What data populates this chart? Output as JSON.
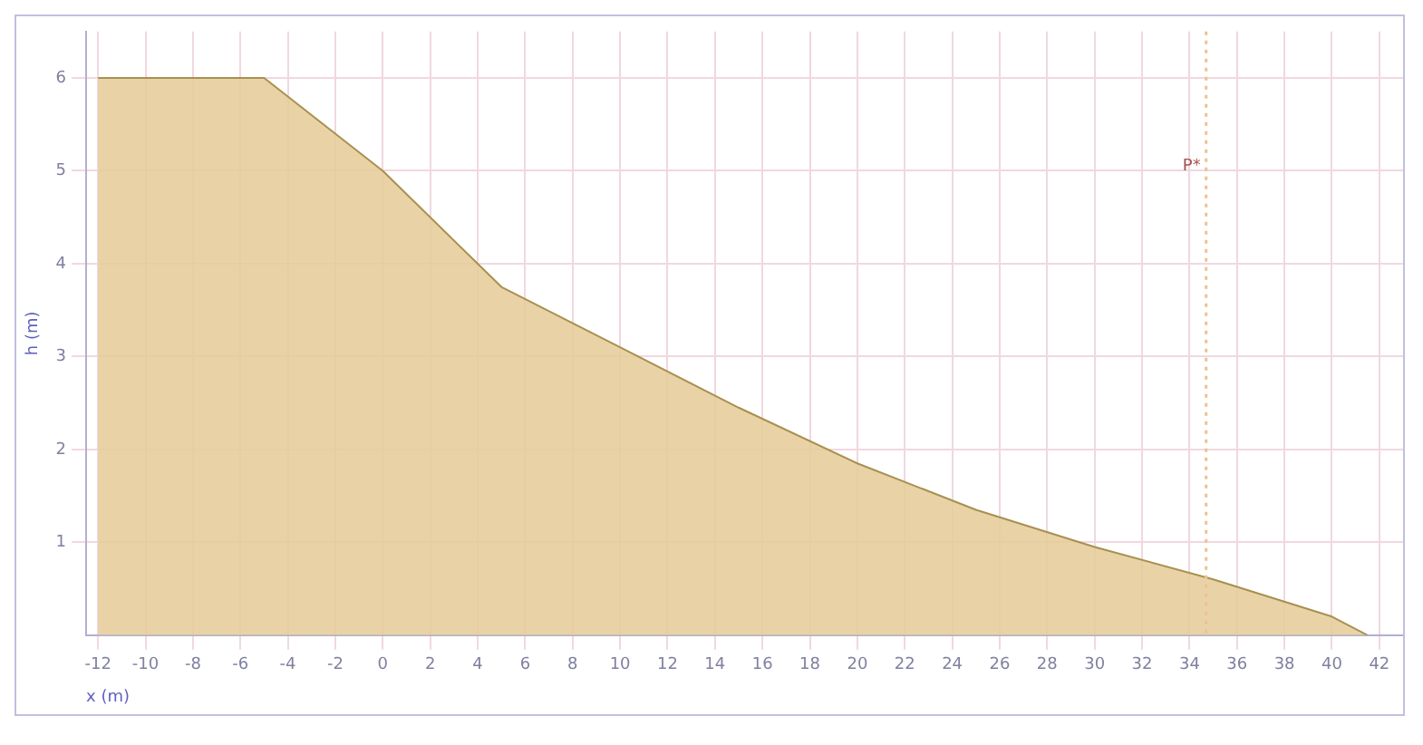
{
  "chart_data": {
    "type": "area",
    "xlabel": "x (m)",
    "ylabel": "h (m)",
    "x": [
      -12,
      -10,
      -5,
      0,
      5,
      10,
      15,
      20,
      25,
      30,
      35,
      40,
      41.5
    ],
    "series": [
      {
        "color": "#e6cc98",
        "values": [
          6,
          6,
          6,
          5.0,
          3.75,
          3.1,
          2.45,
          1.85,
          1.35,
          0.95,
          0.6,
          0.2,
          0
        ]
      }
    ],
    "xlim": [
      -12.5,
      43
    ],
    "xticks": [
      -12,
      -10,
      -8,
      -6,
      -4,
      -2,
      0,
      2,
      4,
      6,
      8,
      10,
      12,
      14,
      16,
      18,
      20,
      22,
      24,
      26,
      28,
      30,
      32,
      34,
      36,
      38,
      40,
      42
    ],
    "ylim": [
      0,
      6.5
    ],
    "yticks": [
      1,
      2,
      3,
      4,
      5,
      6
    ],
    "ref_lines": [
      {
        "axis": "x",
        "value": 34.7,
        "label": "P*",
        "color": "#f0c090",
        "line_style": "dotted"
      }
    ],
    "grid": true,
    "legend": false
  }
}
